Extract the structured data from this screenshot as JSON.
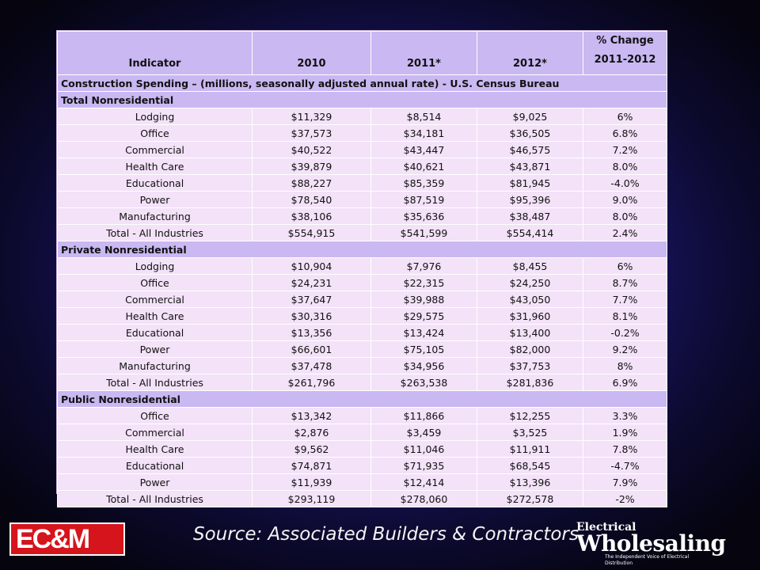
{
  "header": {
    "indicator": "Indicator",
    "y2010": "2010",
    "y2011": "2011*",
    "y2012": "2012*",
    "change_top": "% Change",
    "change_bottom": "2011-2012"
  },
  "caption": "Construction Spending – (millions, seasonally adjusted annual rate) - U.S. Census Bureau",
  "chart_data": {
    "type": "table",
    "columns": [
      "Indicator",
      "2010",
      "2011*",
      "2012*",
      "% Change 2011-2012"
    ],
    "sections": [
      {
        "title": "Total Nonresidential",
        "rows": [
          [
            "Lodging",
            "$11,329",
            "$8,514",
            "$9,025",
            "6%"
          ],
          [
            "Office",
            "$37,573",
            "$34,181",
            "$36,505",
            "6.8%"
          ],
          [
            "Commercial",
            "$40,522",
            "$43,447",
            "$46,575",
            "7.2%"
          ],
          [
            "Health Care",
            "$39,879",
            "$40,621",
            "$43,871",
            "8.0%"
          ],
          [
            "Educational",
            "$88,227",
            "$85,359",
            "$81,945",
            "-4.0%"
          ],
          [
            "Power",
            "$78,540",
            "$87,519",
            "$95,396",
            "9.0%"
          ],
          [
            "Manufacturing",
            "$38,106",
            "$35,636",
            "$38,487",
            "8.0%"
          ],
          [
            "Total - All Industries",
            "$554,915",
            "$541,599",
            "$554,414",
            "2.4%"
          ]
        ]
      },
      {
        "title": "Private Nonresidential",
        "rows": [
          [
            "Lodging",
            "$10,904",
            "$7,976",
            "$8,455",
            "6%"
          ],
          [
            "Office",
            "$24,231",
            "$22,315",
            "$24,250",
            "8.7%"
          ],
          [
            "Commercial",
            "$37,647",
            "$39,988",
            "$43,050",
            "7.7%"
          ],
          [
            "Health Care",
            "$30,316",
            "$29,575",
            "$31,960",
            "8.1%"
          ],
          [
            "Educational",
            "$13,356",
            "$13,424",
            "$13,400",
            "-0.2%"
          ],
          [
            "Power",
            "$66,601",
            "$75,105",
            "$82,000",
            "9.2%"
          ],
          [
            "Manufacturing",
            "$37,478",
            "$34,956",
            "$37,753",
            "8%"
          ],
          [
            "Total - All Industries",
            "$261,796",
            "$263,538",
            "$281,836",
            "6.9%"
          ]
        ]
      },
      {
        "title": "Public  Nonresidential",
        "rows": [
          [
            "Office",
            "$13,342",
            "$11,866",
            "$12,255",
            "3.3%"
          ],
          [
            "Commercial",
            "$2,876",
            "$3,459",
            "$3,525",
            "1.9%"
          ],
          [
            "Health Care",
            "$9,562",
            "$11,046",
            "$11,911",
            "7.8%"
          ],
          [
            "Educational",
            "$74,871",
            "$71,935",
            "$68,545",
            "-4.7%"
          ],
          [
            "Power",
            "$11,939",
            "$12,414",
            "$13,396",
            "7.9%"
          ],
          [
            "Total - All Industries",
            "$293,119",
            "$278,060",
            "$272,578",
            "-2%"
          ]
        ]
      }
    ]
  },
  "footer": {
    "source": "Source: Associated Builders & Contractors",
    "logo_left": "EC&M",
    "logo_right_line1": "Electrical",
    "logo_right_line2": "Wholesaling",
    "logo_right_line3": "The Independent Voice of Electrical Distribution"
  },
  "colors": {
    "header_bg": "#c9b8f2",
    "cell_bg": "#f3e2f8",
    "logo_red": "#d6141c"
  }
}
